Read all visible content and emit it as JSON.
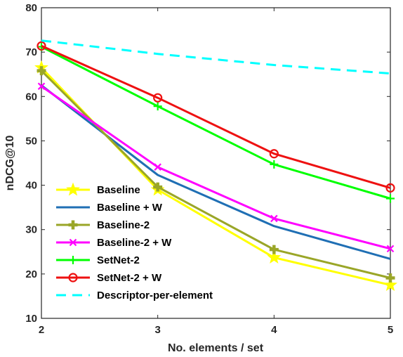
{
  "chart_data": {
    "type": "line",
    "title": "",
    "xlabel": "No. elements / set",
    "ylabel": "nDCG@10",
    "x": [
      2,
      3,
      4,
      5
    ],
    "xlim": [
      2,
      5
    ],
    "ylim": [
      10,
      80
    ],
    "xticks": [
      "2",
      "3",
      "4",
      "5"
    ],
    "yticks": [
      "10",
      "20",
      "30",
      "40",
      "50",
      "60",
      "70",
      "80"
    ],
    "grid": false,
    "legend_position": "bottom-left",
    "series": [
      {
        "name": "Baseline",
        "values": [
          66.5,
          39.0,
          23.7,
          17.5
        ],
        "color": "#ffff00",
        "marker": "star",
        "dash": "solid"
      },
      {
        "name": "Baseline + W",
        "values": [
          62.5,
          42.3,
          30.8,
          23.4
        ],
        "color": "#1f6fb4",
        "marker": "none",
        "dash": "solid"
      },
      {
        "name": "Baseline-2",
        "values": [
          65.8,
          39.6,
          25.5,
          19.1
        ],
        "color": "#9aa628",
        "marker": "plus-filled",
        "dash": "solid"
      },
      {
        "name": "Baseline-2 + W",
        "values": [
          62.3,
          44.1,
          32.5,
          25.7
        ],
        "color": "#ff00ff",
        "marker": "x",
        "dash": "solid"
      },
      {
        "name": "SetNet-2",
        "values": [
          71.2,
          57.8,
          44.7,
          37.0
        ],
        "color": "#00ff00",
        "marker": "plus",
        "dash": "solid"
      },
      {
        "name": "SetNet-2 + W",
        "values": [
          71.4,
          59.7,
          47.1,
          39.4
        ],
        "color": "#ee1111",
        "marker": "circle",
        "dash": "solid"
      },
      {
        "name": "Descriptor-per-element",
        "values": [
          72.6,
          69.6,
          67.1,
          65.2
        ],
        "color": "#00ffff",
        "marker": "none",
        "dash": "dashed"
      }
    ]
  }
}
